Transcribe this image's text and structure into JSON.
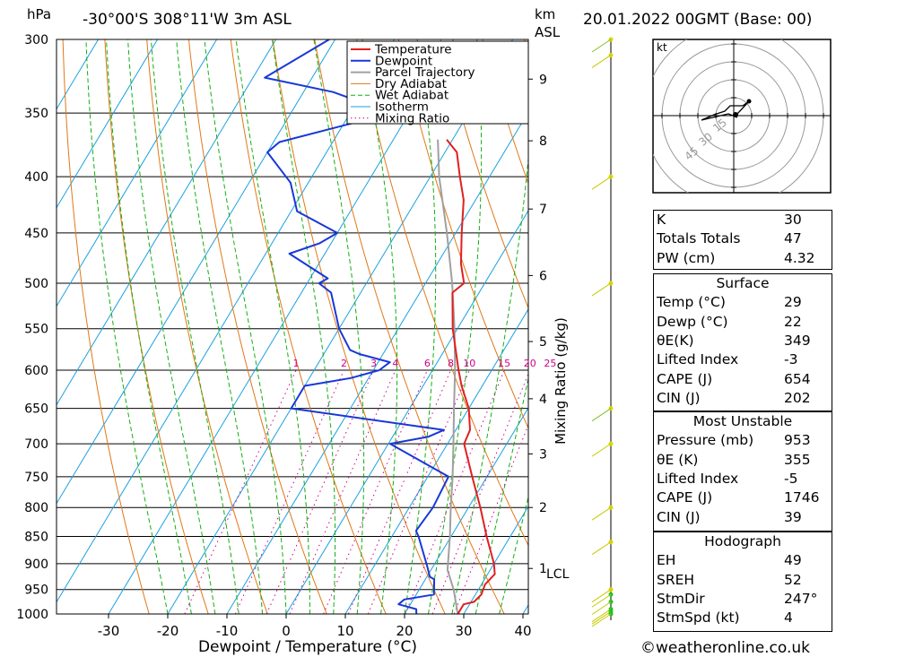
{
  "header": {
    "location": "-30°00'S  308°11'W  3m  ASL",
    "datetime": "20.01.2022  00GMT  (Base: 00)",
    "pressure_unit": "hPa",
    "height_unit": "km",
    "height_unit_sub": "ASL"
  },
  "chart_data": {
    "type": "skew-t",
    "xlabel": "Dewpoint / Temperature (°C)",
    "ylabel_right": "Mixing Ratio (g/kg)",
    "x_ticks": [
      -30,
      -20,
      -10,
      0,
      10,
      20,
      30,
      40
    ],
    "pressure_levels": [
      300,
      350,
      400,
      450,
      500,
      550,
      600,
      650,
      700,
      750,
      800,
      850,
      900,
      950,
      1000
    ],
    "height_km_ticks": [
      {
        "label": "9",
        "p": 326
      },
      {
        "label": "8",
        "p": 371
      },
      {
        "label": "7",
        "p": 428
      },
      {
        "label": "6",
        "p": 492
      },
      {
        "label": "5",
        "p": 565
      },
      {
        "label": "4",
        "p": 637
      },
      {
        "label": "3",
        "p": 715
      },
      {
        "label": "2",
        "p": 800
      },
      {
        "label": "1",
        "p": 909
      }
    ],
    "lcl_label": "LCL",
    "lcl_pressure": 912,
    "mixing_ratio_labels": [
      "1",
      "2",
      "3",
      "4",
      "6",
      "8",
      "10",
      "15",
      "20",
      "25"
    ],
    "mixing_ratio_values": [
      1,
      2,
      3,
      4,
      6,
      8,
      10,
      15,
      20,
      25
    ],
    "legend": [
      "Temperature",
      "Dewpoint",
      "Parcel Trajectory",
      "Dry Adiabat",
      "Wet Adiabat",
      "Isotherm",
      "Mixing Ratio"
    ],
    "series_colors": {
      "temperature": "#e02020",
      "dewpoint": "#1838d8",
      "parcel": "#a0a0a0",
      "dry": "#e07818",
      "wet": "#10b010",
      "isotherm": "#1aa0e0",
      "mixing": "#d0008a"
    },
    "temperature": [
      [
        1000,
        29
      ],
      [
        980,
        29
      ],
      [
        975,
        30.5
      ],
      [
        960,
        31
      ],
      [
        940,
        30.6
      ],
      [
        920,
        31.2
      ],
      [
        900,
        30
      ],
      [
        850,
        26
      ],
      [
        800,
        22
      ],
      [
        750,
        17.5
      ],
      [
        700,
        12.8
      ],
      [
        680,
        12.4
      ],
      [
        650,
        10
      ],
      [
        620,
        6.5
      ],
      [
        600,
        4.4
      ],
      [
        550,
        -0.8
      ],
      [
        510,
        -4.5
      ],
      [
        500,
        -3.5
      ],
      [
        480,
        -6
      ],
      [
        450,
        -9
      ],
      [
        420,
        -12
      ],
      [
        400,
        -15
      ],
      [
        380,
        -18
      ],
      [
        370,
        -21
      ]
    ],
    "dewpoint": [
      [
        1000,
        22
      ],
      [
        990,
        21.5
      ],
      [
        980,
        18
      ],
      [
        970,
        18.5
      ],
      [
        960,
        23
      ],
      [
        930,
        21.5
      ],
      [
        925,
        20.5
      ],
      [
        905,
        19
      ],
      [
        850,
        14.5
      ],
      [
        840,
        13.5
      ],
      [
        800,
        14
      ],
      [
        750,
        13.5
      ],
      [
        700,
        0.3
      ],
      [
        690,
        6
      ],
      [
        680,
        8
      ],
      [
        650,
        -20
      ],
      [
        620,
        -20
      ],
      [
        610,
        -13
      ],
      [
        600,
        -9
      ],
      [
        590,
        -8
      ],
      [
        580,
        -14
      ],
      [
        575,
        -16
      ],
      [
        550,
        -20
      ],
      [
        510,
        -25
      ],
      [
        500,
        -28
      ],
      [
        495,
        -27
      ],
      [
        470,
        -36
      ],
      [
        460,
        -32
      ],
      [
        450,
        -30
      ],
      [
        430,
        -39
      ],
      [
        405,
        -43
      ],
      [
        380,
        -50
      ],
      [
        372,
        -49
      ],
      [
        350,
        -33
      ],
      [
        335,
        -45
      ],
      [
        325,
        -58
      ],
      [
        300,
        -51
      ]
    ],
    "parcel": [
      [
        1000,
        29
      ],
      [
        950,
        25.8
      ],
      [
        912,
        22.8
      ],
      [
        850,
        19.8
      ],
      [
        800,
        17
      ],
      [
        750,
        14.2
      ],
      [
        700,
        11
      ],
      [
        650,
        7.5
      ],
      [
        600,
        3.8
      ],
      [
        550,
        -0.5
      ],
      [
        500,
        -5.5
      ],
      [
        450,
        -11.5
      ],
      [
        400,
        -18.5
      ],
      [
        370,
        -22.5
      ]
    ],
    "wind_barbs_pressures": [
      300,
      310,
      400,
      500,
      650,
      700,
      800,
      860,
      950,
      960,
      975,
      990,
      995,
      1000
    ]
  },
  "hodograph": {
    "unit_label": "kt",
    "ring_labels": [
      "15",
      "30",
      "45"
    ]
  },
  "indices": {
    "k_label": "K",
    "k_value": "30",
    "tt_label": "Totals Totals",
    "tt_value": "47",
    "pw_label": "PW (cm)",
    "pw_value": "4.32"
  },
  "surface": {
    "title": "Surface",
    "temp_label": "Temp (°C)",
    "temp_value": "29",
    "dewp_label": "Dewp (°C)",
    "dewp_value": "22",
    "theta_label": "θE(K)",
    "theta_value": "349",
    "li_label": "Lifted Index",
    "li_value": "-3",
    "cape_label": "CAPE (J)",
    "cape_value": "654",
    "cin_label": "CIN (J)",
    "cin_value": "202"
  },
  "most_unstable": {
    "title": "Most Unstable",
    "pres_label": "Pressure (mb)",
    "pres_value": "953",
    "theta_label": "θE (K)",
    "theta_value": "355",
    "li_label": "Lifted Index",
    "li_value": "-5",
    "cape_label": "CAPE (J)",
    "cape_value": "1746",
    "cin_label": "CIN (J)",
    "cin_value": "39"
  },
  "hodo_stats": {
    "title": "Hodograph",
    "eh_label": "EH",
    "eh_value": "49",
    "sreh_label": "SREH",
    "sreh_value": "52",
    "stmdir_label": "StmDir",
    "stmdir_value": "247°",
    "stmspd_label": "StmSpd (kt)",
    "stmspd_value": "4"
  },
  "footer": {
    "copyright": "©weatheronline.co.uk"
  }
}
